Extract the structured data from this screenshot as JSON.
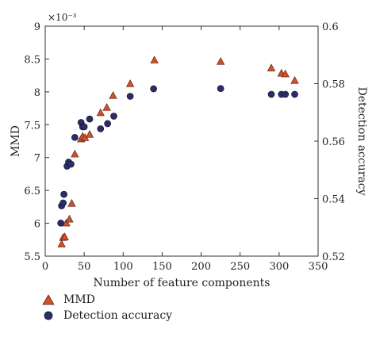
{
  "chart_data": {
    "type": "scatter",
    "xlabel": "Number of feature components",
    "ylabel_left": "MMD",
    "ylabel_right": "Detection accuracy",
    "left_axis_multiplier": "×10⁻³",
    "xlim": [
      0,
      350
    ],
    "ylim_left": [
      5.5,
      9
    ],
    "ylim_right": [
      0.52,
      0.6
    ],
    "x_ticks": [
      "0",
      "50",
      "100",
      "150",
      "200",
      "250",
      "300",
      "350"
    ],
    "y_left_ticks": [
      "5.5",
      "6",
      "6.5",
      "7",
      "7.5",
      "8",
      "8.5",
      "9"
    ],
    "y_right_ticks": [
      "0.52",
      "0.54",
      "0.56",
      "0.58",
      "0.6"
    ],
    "grid": false,
    "legend_position": "below",
    "series": [
      {
        "name": "MMD",
        "axis": "left",
        "marker": "triangle",
        "color": "#d4502a",
        "x": [
          21,
          23,
          25,
          27,
          31,
          34,
          38,
          46,
          48,
          51,
          57,
          71,
          79,
          87,
          109,
          140,
          225,
          290,
          303,
          308,
          320
        ],
        "y": [
          5.68,
          5.78,
          5.79,
          6.0,
          6.06,
          6.3,
          7.05,
          7.28,
          7.32,
          7.3,
          7.35,
          7.68,
          7.76,
          7.94,
          8.12,
          8.48,
          8.46,
          8.36,
          8.28,
          8.27,
          8.17
        ]
      },
      {
        "name": "Detection accuracy",
        "axis": "right",
        "marker": "circle",
        "color": "#2b2d66",
        "x": [
          20,
          21,
          23,
          24,
          28,
          30,
          33,
          38,
          46,
          48,
          50,
          57,
          71,
          80,
          88,
          109,
          139,
          225,
          290,
          303,
          308,
          320
        ],
        "y": [
          0.5315,
          0.5375,
          0.5385,
          0.5415,
          0.5513,
          0.5527,
          0.552,
          0.5613,
          0.5665,
          0.565,
          0.565,
          0.5677,
          0.5643,
          0.5661,
          0.5687,
          0.5756,
          0.5782,
          0.5783,
          0.5763,
          0.5763,
          0.5763,
          0.5763
        ]
      }
    ]
  }
}
